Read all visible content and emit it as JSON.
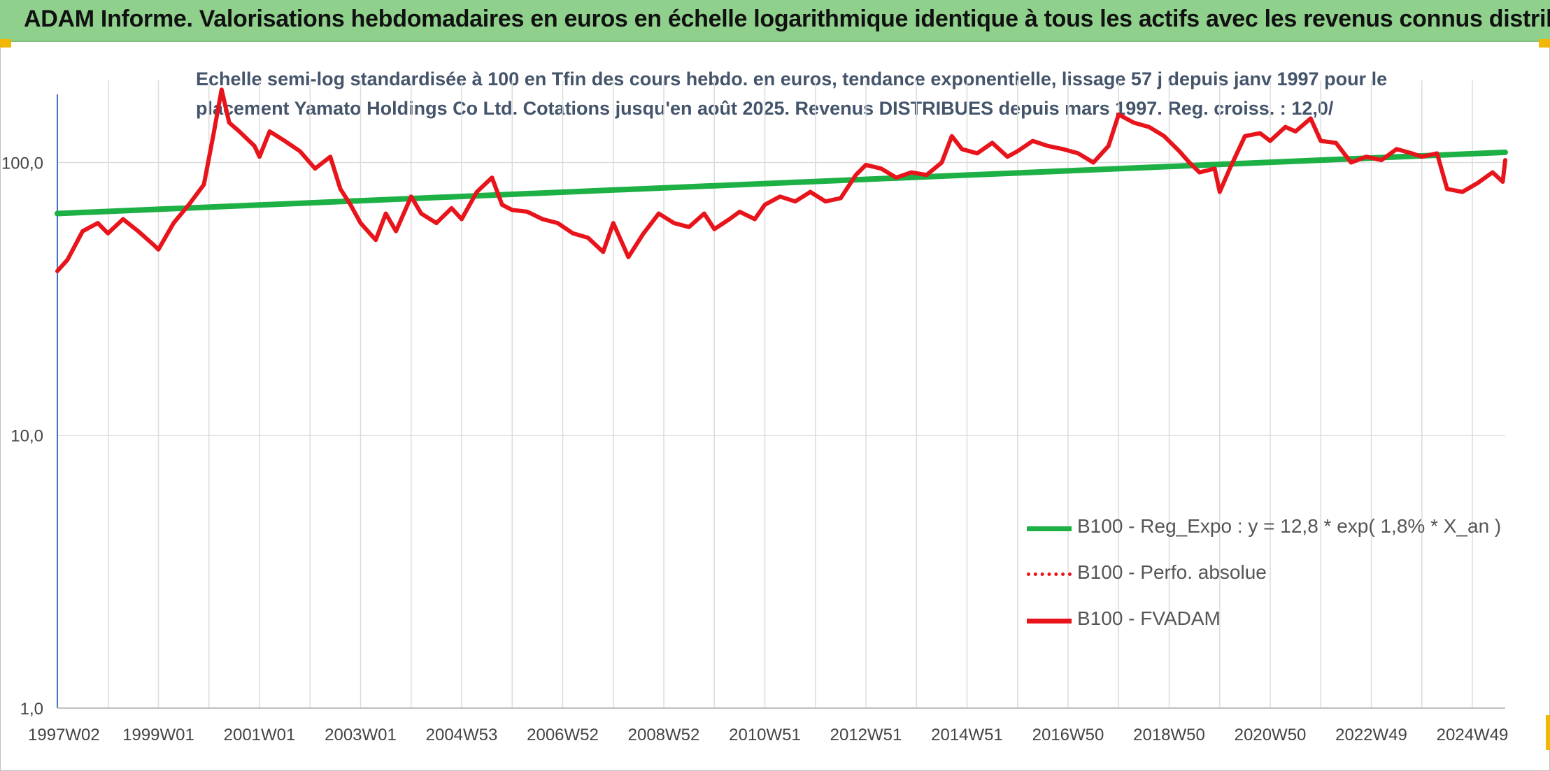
{
  "banner": {
    "title": "ADAM Informe. Valorisations hebdomadaires en euros en échelle logarithmique identique à tous les actifs avec les revenus connus distribués"
  },
  "colors": {
    "banner_bg": "#8fd18c",
    "trend": "#1db045",
    "fvadam": "#e8141b",
    "perfo": "#e8141b",
    "subtitle": "#44546a",
    "accent": "#f2b705"
  },
  "chart_data": {
    "type": "line",
    "title_lines": [
      "Echelle semi-log standardisée à 100 en Tfin des cours hebdo. en euros, tendance exponentielle, lissage 57 j depuis janv 1997 pour le",
      "placement Yamato Holdings Co Ltd. Cotations jusqu'en août 2025. Revenus DISTRIBUES depuis mars 1997. Reg. croiss. : 12,0/"
    ],
    "y_scale": "log",
    "ylim": [
      1,
      200
    ],
    "y_ticks": [
      "1,0",
      "10,0",
      "100,0"
    ],
    "y_tick_values": [
      1,
      10,
      100
    ],
    "xlim": [
      1997.0,
      2025.65
    ],
    "x_ticks": [
      "1997W02",
      "1999W01",
      "2001W01",
      "2003W01",
      "2004W53",
      "2006W52",
      "2008W52",
      "2010W51",
      "2012W51",
      "2014W51",
      "2016W50",
      "2018W50",
      "2020W50",
      "2022W49",
      "2024W49"
    ],
    "x_tick_values": [
      1997.02,
      1999.0,
      2001.0,
      2003.0,
      2005.0,
      2007.0,
      2009.0,
      2011.0,
      2013.0,
      2015.0,
      2017.0,
      2019.0,
      2021.0,
      2023.0,
      2025.0
    ],
    "grid": "vertical",
    "legend_position": "bottom-right",
    "series": [
      {
        "name": "B100 - Reg_Expo : y = 12,8 * exp( 1,8% *  X_an )",
        "style": "solid-green",
        "x": [
          1997.0,
          2025.65
        ],
        "y": [
          65,
          109
        ]
      },
      {
        "name": "B100 - Perfo. absolue",
        "style": "dotted-red",
        "x": [],
        "y": []
      },
      {
        "name": "B100 - FVADAM",
        "style": "solid-red",
        "x": [
          1997.0,
          1997.2,
          1997.5,
          1997.8,
          1998.0,
          1998.3,
          1998.6,
          1998.9,
          1999.0,
          1999.3,
          1999.6,
          1999.9,
          2000.1,
          2000.25,
          2000.4,
          2000.6,
          2000.9,
          2001.0,
          2001.2,
          2001.5,
          2001.8,
          2002.1,
          2002.4,
          2002.6,
          2002.8,
          2003.0,
          2003.3,
          2003.5,
          2003.7,
          2004.0,
          2004.2,
          2004.5,
          2004.8,
          2005.0,
          2005.3,
          2005.6,
          2005.8,
          2006.0,
          2006.3,
          2006.6,
          2006.9,
          2007.2,
          2007.5,
          2007.8,
          2008.0,
          2008.3,
          2008.6,
          2008.9,
          2009.2,
          2009.5,
          2009.8,
          2010.0,
          2010.3,
          2010.5,
          2010.8,
          2011.0,
          2011.3,
          2011.6,
          2011.9,
          2012.2,
          2012.5,
          2012.8,
          2013.0,
          2013.3,
          2013.6,
          2013.9,
          2014.2,
          2014.5,
          2014.7,
          2014.9,
          2015.2,
          2015.5,
          2015.8,
          2016.0,
          2016.3,
          2016.6,
          2016.9,
          2017.2,
          2017.5,
          2017.8,
          2018.0,
          2018.3,
          2018.6,
          2018.9,
          2019.2,
          2019.4,
          2019.6,
          2019.9,
          2020.0,
          2020.2,
          2020.5,
          2020.8,
          2021.0,
          2021.3,
          2021.5,
          2021.8,
          2022.0,
          2022.3,
          2022.6,
          2022.9,
          2023.2,
          2023.5,
          2023.8,
          2024.0,
          2024.3,
          2024.5,
          2024.8,
          2025.1,
          2025.4,
          2025.6,
          2025.65
        ],
        "y": [
          40,
          44,
          56,
          60,
          55,
          62,
          56,
          50,
          48,
          60,
          70,
          83,
          130,
          185,
          140,
          130,
          115,
          105,
          130,
          120,
          110,
          95,
          105,
          80,
          70,
          60,
          52,
          65,
          56,
          75,
          65,
          60,
          68,
          62,
          78,
          88,
          70,
          67,
          66,
          62,
          60,
          55,
          53,
          47,
          60,
          45,
          55,
          65,
          60,
          58,
          65,
          57,
          62,
          66,
          62,
          70,
          75,
          72,
          78,
          72,
          74,
          90,
          98,
          95,
          88,
          92,
          90,
          100,
          125,
          112,
          108,
          118,
          105,
          110,
          120,
          115,
          112,
          108,
          100,
          115,
          150,
          140,
          135,
          125,
          110,
          100,
          92,
          95,
          78,
          95,
          125,
          128,
          120,
          135,
          130,
          145,
          120,
          118,
          100,
          105,
          102,
          112,
          108,
          105,
          108,
          80,
          78,
          84,
          92,
          85,
          102
        ]
      }
    ]
  }
}
